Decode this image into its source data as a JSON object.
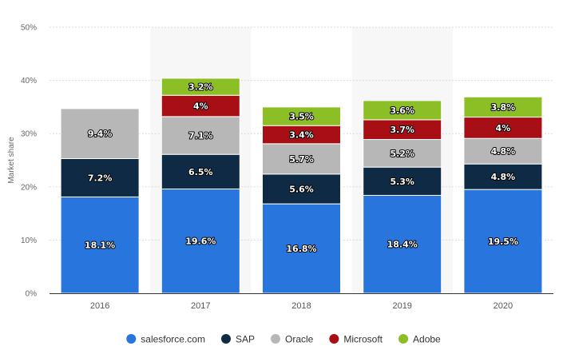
{
  "chart_data": {
    "type": "bar",
    "stacked": true,
    "title": "",
    "xlabel": "",
    "ylabel": "Market share",
    "ylim": [
      0,
      50
    ],
    "y_ticks": [
      "0%",
      "10%",
      "20%",
      "30%",
      "40%",
      "50%"
    ],
    "y_tick_values": [
      0,
      10,
      20,
      30,
      40,
      50
    ],
    "grid": true,
    "legend_position": "bottom",
    "categories": [
      "2016",
      "2017",
      "2018",
      "2019",
      "2020"
    ],
    "highlighted_categories": [
      "2017",
      "2019"
    ],
    "series": [
      {
        "name": "salesforce.com",
        "color": "#2876dd",
        "values": [
          18.1,
          19.6,
          16.8,
          18.4,
          19.5
        ],
        "labels": [
          "18.1%",
          "19.6%",
          "16.8%",
          "18.4%",
          "19.5%"
        ]
      },
      {
        "name": "SAP",
        "color": "#0f2a44",
        "values": [
          7.2,
          6.5,
          5.6,
          5.3,
          4.8
        ],
        "labels": [
          "7.2%",
          "6.5%",
          "5.6%",
          "5.3%",
          "4.8%"
        ]
      },
      {
        "name": "Oracle",
        "color": "#b7b7b7",
        "values": [
          9.4,
          7.1,
          5.7,
          5.2,
          4.8
        ],
        "labels": [
          "9.4%",
          "7.1%",
          "5.7%",
          "5.2%",
          "4.8%"
        ]
      },
      {
        "name": "Microsoft",
        "color": "#a80f14",
        "values": [
          null,
          4,
          3.4,
          3.7,
          4
        ],
        "labels": [
          "",
          "4%",
          "3.4%",
          "3.7%",
          "4%"
        ]
      },
      {
        "name": "Adobe",
        "color": "#8cbf26",
        "values": [
          null,
          3.2,
          3.5,
          3.6,
          3.8
        ],
        "labels": [
          "",
          "3.2%",
          "3.5%",
          "3.6%",
          "3.8%"
        ]
      }
    ]
  }
}
